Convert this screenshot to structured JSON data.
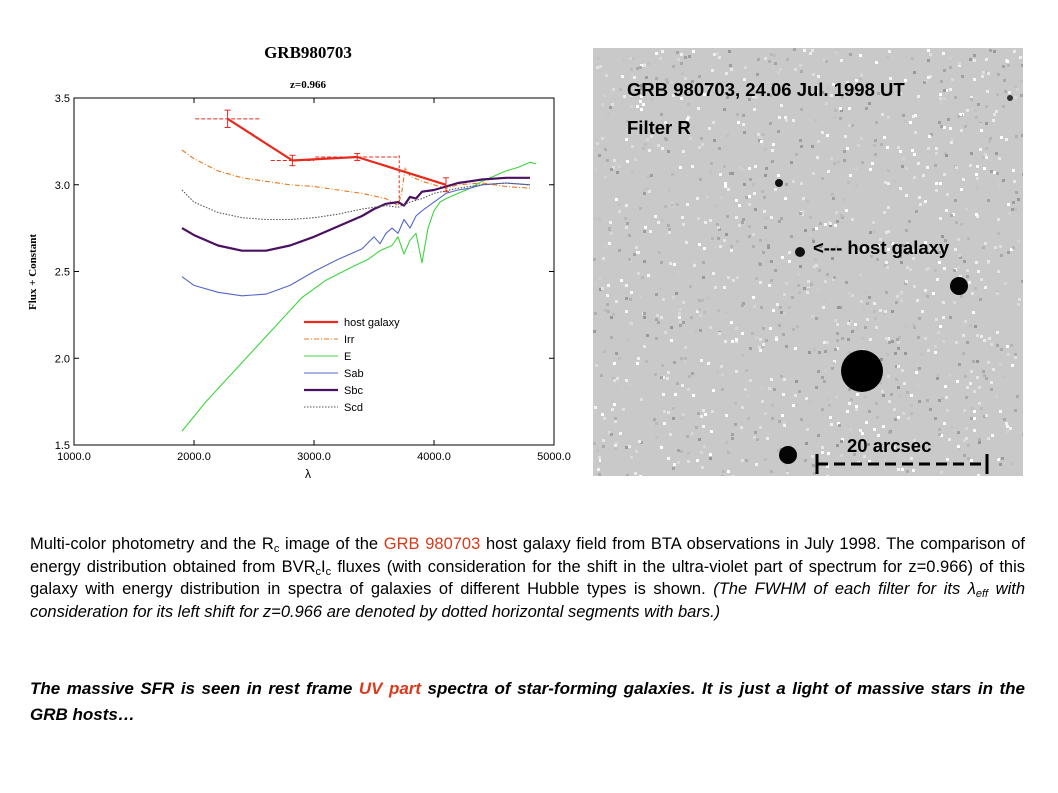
{
  "chart_data": {
    "type": "line",
    "title": "GRB980703",
    "subtitle": "z=0.966",
    "xlabel": "λ",
    "ylabel": "Flux + Constant",
    "xlim": [
      1000,
      5000
    ],
    "ylim": [
      1.5,
      3.5
    ],
    "xticks": [
      "1000.0",
      "2000.0",
      "3000.0",
      "4000.0",
      "5000.0"
    ],
    "yticks": [
      "1.5",
      "2.0",
      "2.5",
      "3.0",
      "3.5"
    ],
    "legend_position": "lower-right",
    "series": [
      {
        "name": "host galaxy",
        "color": "#e8291c",
        "style": "solid",
        "width": 2.2,
        "x": [
          2280,
          2820,
          3360,
          4100
        ],
        "y": [
          3.38,
          3.14,
          3.16,
          3.0
        ],
        "xerr": [
          270,
          180,
          350,
          0
        ],
        "yerr": [
          0.05,
          0.03,
          0.02,
          0.04
        ]
      },
      {
        "name": "Irr",
        "color": "#e8791c",
        "style": "dashdot",
        "width": 1.1,
        "x": [
          1900,
          2000,
          2200,
          2400,
          2600,
          2800,
          3000,
          3200,
          3400,
          3600,
          3650,
          3700,
          3730,
          3760,
          3800,
          3900,
          4000,
          4100,
          4200,
          4400,
          4600,
          4800
        ],
        "y": [
          3.2,
          3.15,
          3.08,
          3.04,
          3.02,
          3.0,
          2.99,
          2.97,
          2.95,
          2.92,
          2.9,
          2.88,
          2.95,
          3.1,
          3.05,
          3.02,
          3.0,
          2.98,
          3.0,
          3.01,
          2.99,
          2.98
        ]
      },
      {
        "name": "E",
        "color": "#3fd43f",
        "style": "solid",
        "width": 1.1,
        "x": [
          1900,
          2100,
          2300,
          2500,
          2700,
          2900,
          3100,
          3300,
          3450,
          3550,
          3650,
          3700,
          3750,
          3800,
          3850,
          3900,
          3950,
          4000,
          4050,
          4100,
          4200,
          4300,
          4400,
          4500,
          4600,
          4700,
          4800,
          4850
        ],
        "y": [
          1.58,
          1.75,
          1.9,
          2.05,
          2.2,
          2.35,
          2.45,
          2.52,
          2.57,
          2.62,
          2.65,
          2.7,
          2.6,
          2.68,
          2.72,
          2.55,
          2.75,
          2.85,
          2.9,
          2.92,
          2.95,
          2.98,
          3.02,
          3.05,
          3.08,
          3.1,
          3.13,
          3.12
        ]
      },
      {
        "name": "Sab",
        "color": "#5566cc",
        "style": "solid",
        "width": 1.1,
        "x": [
          1900,
          2000,
          2200,
          2400,
          2600,
          2800,
          3000,
          3200,
          3400,
          3500,
          3550,
          3600,
          3650,
          3700,
          3750,
          3800,
          3850,
          3900,
          4000,
          4100,
          4200,
          4300,
          4400,
          4600,
          4800
        ],
        "y": [
          2.47,
          2.42,
          2.38,
          2.36,
          2.37,
          2.42,
          2.5,
          2.57,
          2.63,
          2.7,
          2.66,
          2.72,
          2.75,
          2.72,
          2.8,
          2.75,
          2.82,
          2.85,
          2.9,
          2.95,
          2.97,
          2.98,
          3.0,
          3.01,
          3.0
        ]
      },
      {
        "name": "Sbc",
        "color": "#4a1062",
        "style": "solid",
        "width": 2.2,
        "x": [
          1900,
          2000,
          2200,
          2400,
          2600,
          2800,
          3000,
          3200,
          3400,
          3500,
          3600,
          3700,
          3750,
          3800,
          3850,
          3900,
          4000,
          4100,
          4200,
          4300,
          4400,
          4600,
          4800
        ],
        "y": [
          2.75,
          2.71,
          2.65,
          2.62,
          2.62,
          2.65,
          2.7,
          2.76,
          2.82,
          2.86,
          2.89,
          2.9,
          2.88,
          2.93,
          2.92,
          2.96,
          2.97,
          2.99,
          3.01,
          3.02,
          3.03,
          3.04,
          3.04
        ]
      },
      {
        "name": "Scd",
        "color": "#555555",
        "style": "dotted",
        "width": 1.1,
        "x": [
          1900,
          2000,
          2200,
          2400,
          2600,
          2800,
          3000,
          3200,
          3400,
          3600,
          3700,
          3800,
          3900,
          4000,
          4200,
          4400,
          4600,
          4800
        ],
        "y": [
          2.97,
          2.9,
          2.84,
          2.81,
          2.8,
          2.8,
          2.81,
          2.83,
          2.86,
          2.88,
          2.87,
          2.9,
          2.92,
          2.95,
          2.98,
          3.0,
          3.01,
          3.0
        ]
      }
    ]
  },
  "image_panel": {
    "title": "GRB 980703, 24.06 Jul. 1998 UT",
    "filter": "Filter R",
    "host_label": "<--- host galaxy",
    "scale_label": "20 arcsec"
  },
  "caption": {
    "p1_a": "Multi-color photometry and the R",
    "p1_sub_c": "c",
    "p1_b": " image of the ",
    "p1_grb": "GRB 980703",
    "p1_c": " host galaxy field from BTA observations in July 1998. The comparison of energy distribution obtained from BVR",
    "p1_sub_c2": "c",
    "p1_i": "I",
    "p1_sub_c3": "c",
    "p1_d": " fluxes (with consideration for the shift in the ultra-violet part of spectrum for z=0.966) of this galaxy with energy distribution in spectra of galaxies of different Hubble types is shown. ",
    "p1_italic_a": "(The FWHM of each filter for its λ",
    "p1_italic_sub": "eff",
    "p1_italic_b": "  with consideration for its left shift for z=0.966 are denoted by dotted horizontal segments with bars.)",
    "p2_a": "The massive SFR is seen in rest frame ",
    "p2_uv": "UV part",
    "p2_b": " spectra of star-forming galaxies. It is just a light of massive stars in the GRB hosts…"
  }
}
